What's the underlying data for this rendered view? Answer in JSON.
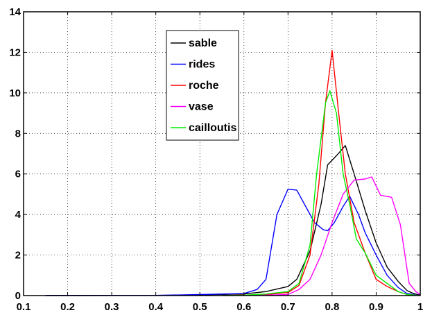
{
  "chart_data": {
    "type": "line",
    "title": "",
    "xlabel": "",
    "ylabel": "",
    "xlim": [
      0.1,
      1
    ],
    "ylim": [
      0,
      14
    ],
    "xticks": [
      "0.1",
      "0.2",
      "0.3",
      "0.4",
      "0.5",
      "0.6",
      "0.7",
      "0.8",
      "0.9",
      "1"
    ],
    "yticks": [
      "0",
      "2",
      "4",
      "6",
      "8",
      "10",
      "12",
      "14"
    ],
    "grid": true,
    "legend_position": "top-center",
    "series": [
      {
        "name": "sable",
        "color": "#000000",
        "points": [
          [
            0.15,
            0
          ],
          [
            0.4,
            0.01
          ],
          [
            0.5,
            0.03
          ],
          [
            0.6,
            0.08
          ],
          [
            0.65,
            0.2
          ],
          [
            0.7,
            0.45
          ],
          [
            0.72,
            0.8
          ],
          [
            0.75,
            2.2
          ],
          [
            0.775,
            4.5
          ],
          [
            0.79,
            6.45
          ],
          [
            0.81,
            6.9
          ],
          [
            0.83,
            7.4
          ],
          [
            0.85,
            6.0
          ],
          [
            0.875,
            4.2
          ],
          [
            0.9,
            2.6
          ],
          [
            0.925,
            1.4
          ],
          [
            0.95,
            0.7
          ],
          [
            0.97,
            0.25
          ],
          [
            0.985,
            0.1
          ],
          [
            1.0,
            0.02
          ]
        ]
      },
      {
        "name": "rides",
        "color": "#0000ff",
        "points": [
          [
            0.15,
            0
          ],
          [
            0.4,
            0.01
          ],
          [
            0.5,
            0.05
          ],
          [
            0.6,
            0.1
          ],
          [
            0.63,
            0.3
          ],
          [
            0.65,
            0.8
          ],
          [
            0.675,
            4.0
          ],
          [
            0.7,
            5.25
          ],
          [
            0.72,
            5.2
          ],
          [
            0.74,
            4.4
          ],
          [
            0.76,
            3.6
          ],
          [
            0.78,
            3.25
          ],
          [
            0.79,
            3.2
          ],
          [
            0.805,
            3.6
          ],
          [
            0.825,
            4.4
          ],
          [
            0.84,
            4.9
          ],
          [
            0.86,
            4.0
          ],
          [
            0.875,
            3.1
          ],
          [
            0.9,
            2.0
          ],
          [
            0.925,
            1.0
          ],
          [
            0.95,
            0.4
          ],
          [
            0.97,
            0.1
          ],
          [
            1.0,
            0.0
          ]
        ]
      },
      {
        "name": "roche",
        "color": "#ff0000",
        "points": [
          [
            0.55,
            0
          ],
          [
            0.65,
            0.05
          ],
          [
            0.7,
            0.15
          ],
          [
            0.725,
            0.5
          ],
          [
            0.75,
            2.0
          ],
          [
            0.77,
            5.5
          ],
          [
            0.785,
            9.5
          ],
          [
            0.8,
            12.1
          ],
          [
            0.815,
            9.0
          ],
          [
            0.83,
            6.0
          ],
          [
            0.85,
            3.6
          ],
          [
            0.875,
            2.1
          ],
          [
            0.9,
            0.8
          ],
          [
            0.925,
            0.45
          ],
          [
            0.95,
            0.2
          ],
          [
            0.97,
            0.05
          ],
          [
            1.0,
            0.0
          ]
        ]
      },
      {
        "name": "vase",
        "color": "#ff00ff",
        "points": [
          [
            0.55,
            0
          ],
          [
            0.65,
            0.02
          ],
          [
            0.7,
            0.05
          ],
          [
            0.725,
            0.3
          ],
          [
            0.75,
            0.8
          ],
          [
            0.775,
            2.0
          ],
          [
            0.8,
            3.6
          ],
          [
            0.825,
            5.0
          ],
          [
            0.85,
            5.7
          ],
          [
            0.875,
            5.75
          ],
          [
            0.89,
            5.85
          ],
          [
            0.91,
            4.95
          ],
          [
            0.935,
            4.85
          ],
          [
            0.955,
            3.5
          ],
          [
            0.975,
            0.6
          ],
          [
            0.99,
            0.2
          ],
          [
            1.0,
            0.05
          ]
        ]
      },
      {
        "name": "cailloutis",
        "color": "#00ee00",
        "points": [
          [
            0.55,
            0
          ],
          [
            0.6,
            0.02
          ],
          [
            0.65,
            0.08
          ],
          [
            0.7,
            0.2
          ],
          [
            0.725,
            0.6
          ],
          [
            0.75,
            2.5
          ],
          [
            0.765,
            6.0
          ],
          [
            0.785,
            9.5
          ],
          [
            0.795,
            10.1
          ],
          [
            0.81,
            9.0
          ],
          [
            0.825,
            6.0
          ],
          [
            0.84,
            4.5
          ],
          [
            0.855,
            2.8
          ],
          [
            0.875,
            2.1
          ],
          [
            0.9,
            1.0
          ],
          [
            0.925,
            0.6
          ],
          [
            0.95,
            0.2
          ],
          [
            0.97,
            0.05
          ],
          [
            1.0,
            0.0
          ]
        ]
      }
    ]
  }
}
